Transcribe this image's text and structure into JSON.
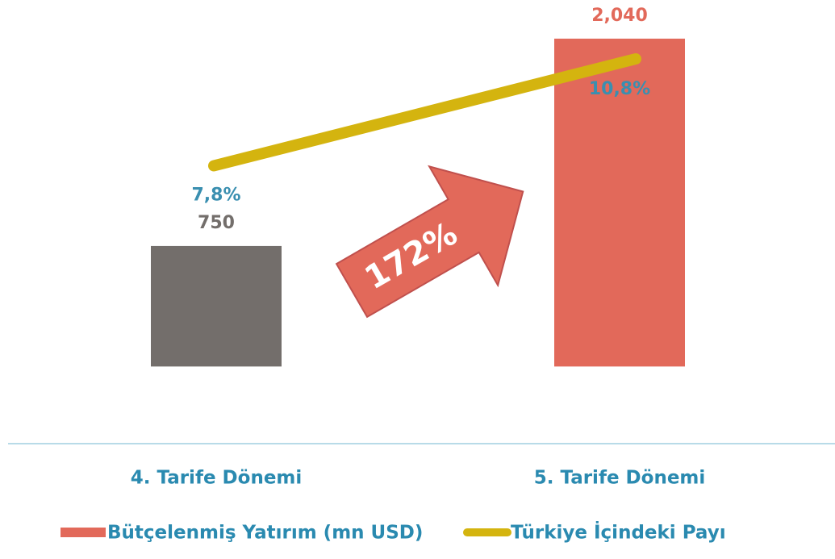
{
  "chart_data": {
    "type": "bar",
    "categories": [
      "4. Tarife Dönemi",
      "5. Tarife Dönemi"
    ],
    "series": [
      {
        "name": "Bütçelenmiş Yatırım (mn USD)",
        "type": "bar",
        "color": "#e2695a",
        "colors": [
          "#736e6b",
          "#e2695a"
        ],
        "values": [
          750,
          2040
        ],
        "value_labels": [
          "750",
          "2,040"
        ]
      },
      {
        "name": "Türkiye İçindeki Payı",
        "type": "line",
        "axis": "y2",
        "color": "#d4b40f",
        "values": [
          7.8,
          10.8
        ],
        "value_labels": [
          "7,8%",
          "10,8%"
        ]
      }
    ],
    "ylim": [
      -480,
      2180
    ],
    "y2lim": [
      0,
      12
    ],
    "annotation": "172%",
    "legend": "bottom"
  }
}
